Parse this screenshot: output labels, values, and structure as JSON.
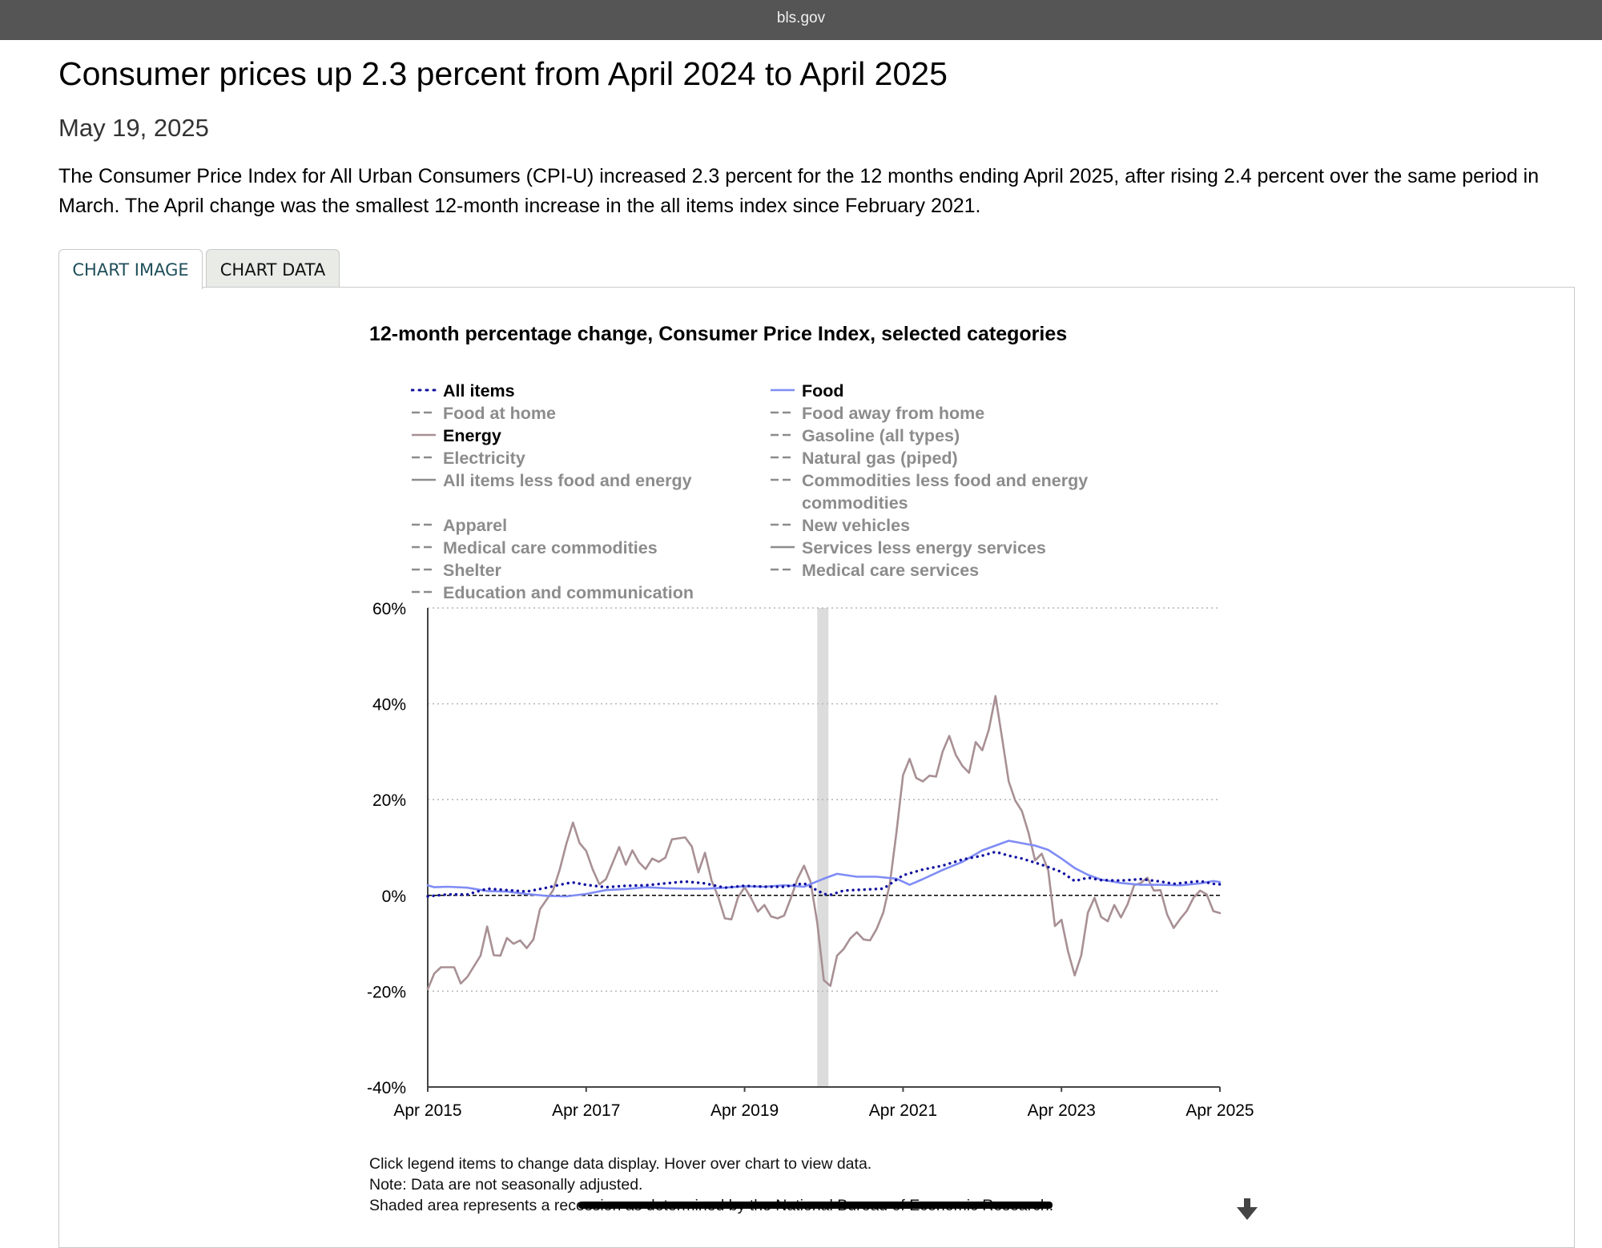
{
  "browser": {
    "url": "bls.gov"
  },
  "article": {
    "headline": "Consumer prices up 2.3 percent from April 2024 to April 2025",
    "date": "May 19, 2025",
    "intro": "The Consumer Price Index for All Urban Consumers (CPI-U) increased 2.3 percent for the 12 months ending April 2025, after rising 2.4 percent over the same period in March. The April change was the smallest 12-month increase in the all items index since February 2021."
  },
  "tabs": {
    "chart_image": "CHART IMAGE",
    "chart_data": "CHART DATA",
    "active": "chart_image"
  },
  "legend": {
    "items": [
      {
        "label": "All items",
        "style": "dotted",
        "color": "#1010a0",
        "active": true
      },
      {
        "label": "Food",
        "style": "solid",
        "color": "#7f8cf5",
        "active": true
      },
      {
        "label": "Food at home",
        "style": "dashed",
        "color": "#8c8c8c",
        "active": false
      },
      {
        "label": "Food away from home",
        "style": "dashed",
        "color": "#8c8c8c",
        "active": false
      },
      {
        "label": "Energy",
        "style": "solid",
        "color": "#a89094",
        "active": true
      },
      {
        "label": "Gasoline (all types)",
        "style": "dashed",
        "color": "#8c8c8c",
        "active": false
      },
      {
        "label": "Electricity",
        "style": "dashed",
        "color": "#8c8c8c",
        "active": false
      },
      {
        "label": "Natural gas (piped)",
        "style": "dashed",
        "color": "#8c8c8c",
        "active": false
      },
      {
        "label": "All items less food and energy",
        "style": "solid",
        "color": "#8c8c8c",
        "active": false
      },
      {
        "label": "Commodities less food and energy commodities",
        "style": "dashed",
        "color": "#8c8c8c",
        "active": false
      },
      {
        "label": "Apparel",
        "style": "dashed",
        "color": "#8c8c8c",
        "active": false
      },
      {
        "label": "New vehicles",
        "style": "dashed",
        "color": "#8c8c8c",
        "active": false
      },
      {
        "label": "Medical care commodities",
        "style": "dashed",
        "color": "#8c8c8c",
        "active": false
      },
      {
        "label": "Services less energy services",
        "style": "solid",
        "color": "#8c8c8c",
        "active": false
      },
      {
        "label": "Shelter",
        "style": "dashed",
        "color": "#8c8c8c",
        "active": false
      },
      {
        "label": "Medical care services",
        "style": "dashed",
        "color": "#8c8c8c",
        "active": false
      },
      {
        "label": "Education and communication",
        "style": "dashed",
        "color": "#8c8c8c",
        "active": false
      }
    ]
  },
  "chart_data": {
    "type": "line",
    "title": "12-month percentage change, Consumer Price Index, selected categories",
    "xlabel": "",
    "ylabel": "",
    "ylim": [
      -40,
      60
    ],
    "y_ticks": [
      "60%",
      "40%",
      "20%",
      "0%",
      "-20%",
      "-40%"
    ],
    "x_ticks": [
      "Apr 2015",
      "Apr 2017",
      "Apr 2019",
      "Apr 2021",
      "Apr 2023",
      "Apr 2025"
    ],
    "x_start": "2015-04",
    "x_end": "2025-04",
    "grid": true,
    "zero_line": true,
    "recession_shading": [
      "2020-03",
      "2020-04"
    ],
    "series": [
      {
        "name": "All items",
        "style": "dotted",
        "color": "#1010a0",
        "points": [
          [
            "2015-04",
            -0.2
          ],
          [
            "2015-07",
            0.2
          ],
          [
            "2015-10",
            0.2
          ],
          [
            "2016-01",
            1.4
          ],
          [
            "2016-04",
            1.1
          ],
          [
            "2016-07",
            0.8
          ],
          [
            "2016-10",
            1.6
          ],
          [
            "2017-01",
            2.5
          ],
          [
            "2017-02",
            2.7
          ],
          [
            "2017-04",
            2.2
          ],
          [
            "2017-07",
            1.7
          ],
          [
            "2017-10",
            2.0
          ],
          [
            "2018-01",
            2.1
          ],
          [
            "2018-04",
            2.5
          ],
          [
            "2018-07",
            2.9
          ],
          [
            "2018-10",
            2.5
          ],
          [
            "2019-01",
            1.6
          ],
          [
            "2019-04",
            2.0
          ],
          [
            "2019-07",
            1.8
          ],
          [
            "2019-10",
            1.8
          ],
          [
            "2020-01",
            2.5
          ],
          [
            "2020-04",
            0.3
          ],
          [
            "2020-05",
            0.1
          ],
          [
            "2020-07",
            1.0
          ],
          [
            "2020-10",
            1.2
          ],
          [
            "2021-01",
            1.4
          ],
          [
            "2021-04",
            4.2
          ],
          [
            "2021-07",
            5.4
          ],
          [
            "2021-10",
            6.2
          ],
          [
            "2022-01",
            7.5
          ],
          [
            "2022-04",
            8.3
          ],
          [
            "2022-06",
            9.1
          ],
          [
            "2022-08",
            8.3
          ],
          [
            "2022-10",
            7.7
          ],
          [
            "2023-01",
            6.4
          ],
          [
            "2023-04",
            4.9
          ],
          [
            "2023-06",
            3.0
          ],
          [
            "2023-08",
            3.7
          ],
          [
            "2023-10",
            3.2
          ],
          [
            "2024-01",
            3.1
          ],
          [
            "2024-04",
            3.4
          ],
          [
            "2024-07",
            2.9
          ],
          [
            "2024-09",
            2.4
          ],
          [
            "2025-01",
            3.0
          ],
          [
            "2025-03",
            2.4
          ],
          [
            "2025-04",
            2.3
          ]
        ]
      },
      {
        "name": "Food",
        "style": "solid",
        "color": "#7f8cf5",
        "points": [
          [
            "2015-04",
            2.1
          ],
          [
            "2015-05",
            1.7
          ],
          [
            "2015-07",
            1.8
          ],
          [
            "2015-10",
            1.6
          ],
          [
            "2016-01",
            0.9
          ],
          [
            "2016-04",
            0.8
          ],
          [
            "2016-07",
            0.3
          ],
          [
            "2016-10",
            -0.1
          ],
          [
            "2017-01",
            -0.2
          ],
          [
            "2017-04",
            0.3
          ],
          [
            "2017-07",
            1.1
          ],
          [
            "2017-10",
            1.3
          ],
          [
            "2018-01",
            1.7
          ],
          [
            "2018-04",
            1.5
          ],
          [
            "2018-07",
            1.4
          ],
          [
            "2018-10",
            1.4
          ],
          [
            "2019-01",
            1.6
          ],
          [
            "2019-04",
            1.9
          ],
          [
            "2019-07",
            1.8
          ],
          [
            "2019-10",
            2.1
          ],
          [
            "2020-01",
            1.8
          ],
          [
            "2020-04",
            3.5
          ],
          [
            "2020-06",
            4.5
          ],
          [
            "2020-09",
            3.9
          ],
          [
            "2020-12",
            3.9
          ],
          [
            "2021-03",
            3.5
          ],
          [
            "2021-05",
            2.2
          ],
          [
            "2021-07",
            3.4
          ],
          [
            "2021-10",
            5.3
          ],
          [
            "2022-01",
            7.0
          ],
          [
            "2022-04",
            9.4
          ],
          [
            "2022-06",
            10.4
          ],
          [
            "2022-08",
            11.4
          ],
          [
            "2022-10",
            10.9
          ],
          [
            "2022-12",
            10.4
          ],
          [
            "2023-02",
            9.5
          ],
          [
            "2023-04",
            7.7
          ],
          [
            "2023-06",
            5.7
          ],
          [
            "2023-08",
            4.3
          ],
          [
            "2023-10",
            3.3
          ],
          [
            "2024-01",
            2.6
          ],
          [
            "2024-04",
            2.2
          ],
          [
            "2024-07",
            2.2
          ],
          [
            "2024-10",
            2.1
          ],
          [
            "2025-01",
            2.5
          ],
          [
            "2025-03",
            3.0
          ],
          [
            "2025-04",
            2.8
          ]
        ]
      },
      {
        "name": "Energy",
        "style": "solid",
        "color": "#a89094",
        "points": [
          [
            "2015-04",
            -19.6
          ],
          [
            "2015-05",
            -16.3
          ],
          [
            "2015-06",
            -15.0
          ],
          [
            "2015-08",
            -15.0
          ],
          [
            "2015-09",
            -18.4
          ],
          [
            "2015-10",
            -17.0
          ],
          [
            "2015-12",
            -12.6
          ],
          [
            "2016-01",
            -6.5
          ],
          [
            "2016-02",
            -12.5
          ],
          [
            "2016-03",
            -12.6
          ],
          [
            "2016-04",
            -8.9
          ],
          [
            "2016-05",
            -10.1
          ],
          [
            "2016-06",
            -9.4
          ],
          [
            "2016-07",
            -11.0
          ],
          [
            "2016-08",
            -9.2
          ],
          [
            "2016-09",
            -2.9
          ],
          [
            "2016-11",
            1.1
          ],
          [
            "2016-12",
            5.4
          ],
          [
            "2017-01",
            10.8
          ],
          [
            "2017-02",
            15.2
          ],
          [
            "2017-03",
            10.9
          ],
          [
            "2017-04",
            9.3
          ],
          [
            "2017-05",
            5.4
          ],
          [
            "2017-06",
            2.3
          ],
          [
            "2017-07",
            3.4
          ],
          [
            "2017-09",
            10.1
          ],
          [
            "2017-10",
            6.4
          ],
          [
            "2017-11",
            9.4
          ],
          [
            "2017-12",
            6.9
          ],
          [
            "2018-01",
            5.5
          ],
          [
            "2018-02",
            7.7
          ],
          [
            "2018-03",
            7.0
          ],
          [
            "2018-04",
            7.9
          ],
          [
            "2018-05",
            11.7
          ],
          [
            "2018-07",
            12.1
          ],
          [
            "2018-08",
            10.2
          ],
          [
            "2018-09",
            4.8
          ],
          [
            "2018-10",
            8.9
          ],
          [
            "2018-11",
            3.1
          ],
          [
            "2018-12",
            -0.3
          ],
          [
            "2019-01",
            -4.8
          ],
          [
            "2019-02",
            -5.0
          ],
          [
            "2019-03",
            -0.4
          ],
          [
            "2019-04",
            1.7
          ],
          [
            "2019-05",
            -0.6
          ],
          [
            "2019-06",
            -3.4
          ],
          [
            "2019-07",
            -2.0
          ],
          [
            "2019-08",
            -4.4
          ],
          [
            "2019-09",
            -4.8
          ],
          [
            "2019-10",
            -4.2
          ],
          [
            "2019-11",
            -0.6
          ],
          [
            "2019-12",
            3.4
          ],
          [
            "2020-01",
            6.2
          ],
          [
            "2020-02",
            2.8
          ],
          [
            "2020-03",
            -5.7
          ],
          [
            "2020-04",
            -17.7
          ],
          [
            "2020-05",
            -18.9
          ],
          [
            "2020-06",
            -12.6
          ],
          [
            "2020-07",
            -11.2
          ],
          [
            "2020-08",
            -9.0
          ],
          [
            "2020-09",
            -7.7
          ],
          [
            "2020-10",
            -9.2
          ],
          [
            "2020-11",
            -9.4
          ],
          [
            "2020-12",
            -7.0
          ],
          [
            "2021-01",
            -3.6
          ],
          [
            "2021-02",
            2.4
          ],
          [
            "2021-03",
            13.2
          ],
          [
            "2021-04",
            25.1
          ],
          [
            "2021-05",
            28.5
          ],
          [
            "2021-06",
            24.5
          ],
          [
            "2021-07",
            23.8
          ],
          [
            "2021-08",
            25.0
          ],
          [
            "2021-09",
            24.8
          ],
          [
            "2021-10",
            30.0
          ],
          [
            "2021-11",
            33.3
          ],
          [
            "2021-12",
            29.3
          ],
          [
            "2022-01",
            27.0
          ],
          [
            "2022-02",
            25.6
          ],
          [
            "2022-03",
            32.0
          ],
          [
            "2022-04",
            30.3
          ],
          [
            "2022-05",
            34.6
          ],
          [
            "2022-06",
            41.6
          ],
          [
            "2022-07",
            32.9
          ],
          [
            "2022-08",
            23.8
          ],
          [
            "2022-09",
            19.8
          ],
          [
            "2022-10",
            17.6
          ],
          [
            "2022-11",
            13.1
          ],
          [
            "2022-12",
            7.3
          ],
          [
            "2023-01",
            8.7
          ],
          [
            "2023-02",
            5.2
          ],
          [
            "2023-03",
            -6.4
          ],
          [
            "2023-04",
            -5.1
          ],
          [
            "2023-05",
            -11.7
          ],
          [
            "2023-06",
            -16.7
          ],
          [
            "2023-07",
            -12.5
          ],
          [
            "2023-08",
            -3.6
          ],
          [
            "2023-09",
            -0.5
          ],
          [
            "2023-10",
            -4.5
          ],
          [
            "2023-11",
            -5.4
          ],
          [
            "2023-12",
            -2.0
          ],
          [
            "2024-01",
            -4.6
          ],
          [
            "2024-02",
            -1.9
          ],
          [
            "2024-03",
            2.1
          ],
          [
            "2024-04",
            2.6
          ],
          [
            "2024-05",
            3.7
          ],
          [
            "2024-06",
            1.0
          ],
          [
            "2024-07",
            1.1
          ],
          [
            "2024-08",
            -4.0
          ],
          [
            "2024-09",
            -6.8
          ],
          [
            "2024-10",
            -4.9
          ],
          [
            "2024-11",
            -3.2
          ],
          [
            "2024-12",
            -0.5
          ],
          [
            "2025-01",
            1.0
          ],
          [
            "2025-02",
            0.2
          ],
          [
            "2025-03",
            -3.3
          ],
          [
            "2025-04",
            -3.7
          ]
        ]
      }
    ]
  },
  "notes": {
    "line1": "Click legend items to change data display. Hover over chart to view data.",
    "line2": "Note: Data are not seasonally adjusted.",
    "line3": "Shaded area represents a recession as determined by the National Bureau of Economic Research."
  }
}
